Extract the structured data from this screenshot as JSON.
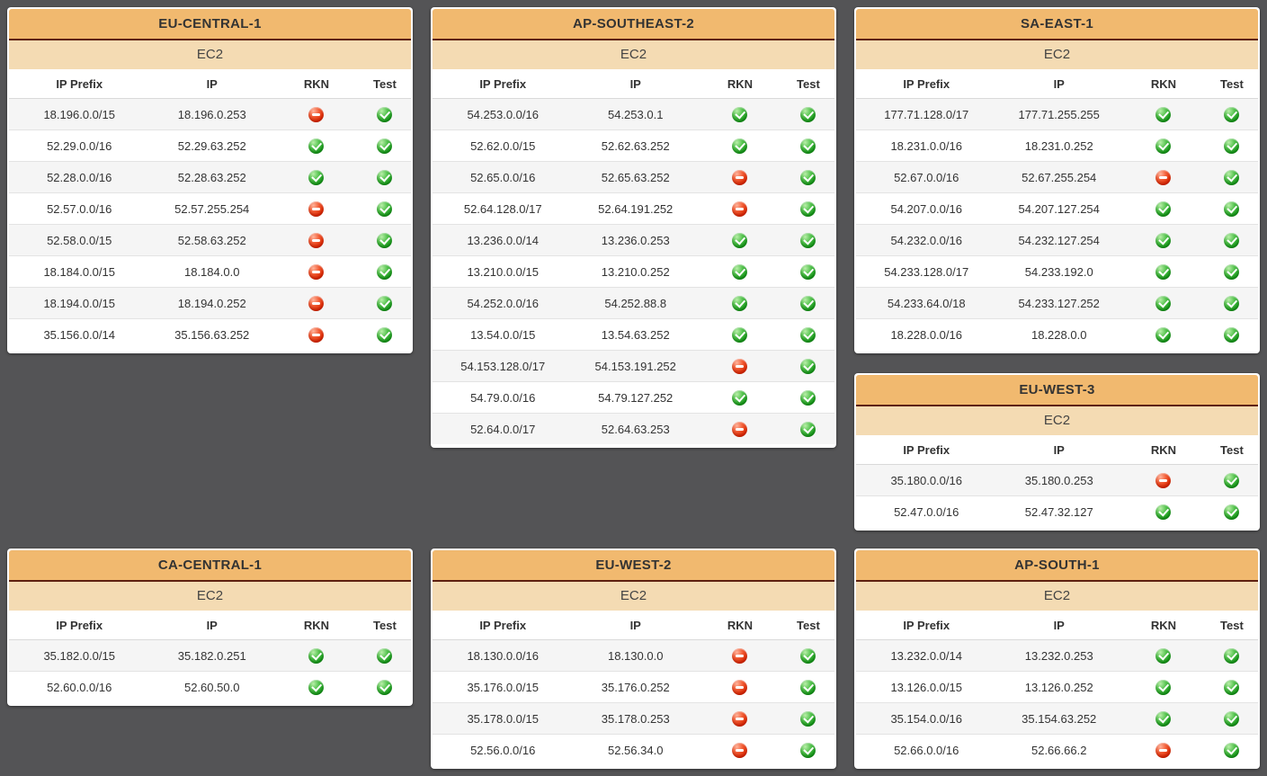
{
  "page": {
    "background_color": "#545456",
    "panel_header_color": "#f1b96f",
    "panel_subheader_color": "#f4dbb3",
    "panel_header_border_color": "#5e2010"
  },
  "service_label": "EC2",
  "table_columns": [
    "IP Prefix",
    "IP",
    "RKN",
    "Test"
  ],
  "status_icons": {
    "ok": {
      "name": "green-check-icon",
      "color": "#189a1b"
    },
    "blocked": {
      "name": "red-block-icon",
      "color": "#dc2801"
    }
  },
  "grid_rows": [
    [
      [
        "eu_central_1"
      ],
      [
        "ap_southeast_2"
      ],
      [
        "sa_east_1",
        "eu_west_3"
      ]
    ],
    [
      [
        "ca_central_1"
      ],
      [
        "eu_west_2"
      ],
      [
        "ap_south_1"
      ]
    ]
  ],
  "regions": {
    "eu_central_1": {
      "title": "EU-CENTRAL-1",
      "rows": [
        [
          "18.196.0.0/15",
          "18.196.0.253",
          "blocked",
          "ok"
        ],
        [
          "52.29.0.0/16",
          "52.29.63.252",
          "ok",
          "ok"
        ],
        [
          "52.28.0.0/16",
          "52.28.63.252",
          "ok",
          "ok"
        ],
        [
          "52.57.0.0/16",
          "52.57.255.254",
          "blocked",
          "ok"
        ],
        [
          "52.58.0.0/15",
          "52.58.63.252",
          "blocked",
          "ok"
        ],
        [
          "18.184.0.0/15",
          "18.184.0.0",
          "blocked",
          "ok"
        ],
        [
          "18.194.0.0/15",
          "18.194.0.252",
          "blocked",
          "ok"
        ],
        [
          "35.156.0.0/14",
          "35.156.63.252",
          "blocked",
          "ok"
        ]
      ]
    },
    "ap_southeast_2": {
      "title": "AP-SOUTHEAST-2",
      "rows": [
        [
          "54.253.0.0/16",
          "54.253.0.1",
          "ok",
          "ok"
        ],
        [
          "52.62.0.0/15",
          "52.62.63.252",
          "ok",
          "ok"
        ],
        [
          "52.65.0.0/16",
          "52.65.63.252",
          "blocked",
          "ok"
        ],
        [
          "52.64.128.0/17",
          "52.64.191.252",
          "blocked",
          "ok"
        ],
        [
          "13.236.0.0/14",
          "13.236.0.253",
          "ok",
          "ok"
        ],
        [
          "13.210.0.0/15",
          "13.210.0.252",
          "ok",
          "ok"
        ],
        [
          "54.252.0.0/16",
          "54.252.88.8",
          "ok",
          "ok"
        ],
        [
          "13.54.0.0/15",
          "13.54.63.252",
          "ok",
          "ok"
        ],
        [
          "54.153.128.0/17",
          "54.153.191.252",
          "blocked",
          "ok"
        ],
        [
          "54.79.0.0/16",
          "54.79.127.252",
          "ok",
          "ok"
        ],
        [
          "52.64.0.0/17",
          "52.64.63.253",
          "blocked",
          "ok"
        ]
      ]
    },
    "sa_east_1": {
      "title": "SA-EAST-1",
      "rows": [
        [
          "177.71.128.0/17",
          "177.71.255.255",
          "ok",
          "ok"
        ],
        [
          "18.231.0.0/16",
          "18.231.0.252",
          "ok",
          "ok"
        ],
        [
          "52.67.0.0/16",
          "52.67.255.254",
          "blocked",
          "ok"
        ],
        [
          "54.207.0.0/16",
          "54.207.127.254",
          "ok",
          "ok"
        ],
        [
          "54.232.0.0/16",
          "54.232.127.254",
          "ok",
          "ok"
        ],
        [
          "54.233.128.0/17",
          "54.233.192.0",
          "ok",
          "ok"
        ],
        [
          "54.233.64.0/18",
          "54.233.127.252",
          "ok",
          "ok"
        ],
        [
          "18.228.0.0/16",
          "18.228.0.0",
          "ok",
          "ok"
        ]
      ]
    },
    "eu_west_3": {
      "title": "EU-WEST-3",
      "rows": [
        [
          "35.180.0.0/16",
          "35.180.0.253",
          "blocked",
          "ok"
        ],
        [
          "52.47.0.0/16",
          "52.47.32.127",
          "ok",
          "ok"
        ]
      ]
    },
    "ca_central_1": {
      "title": "CA-CENTRAL-1",
      "rows": [
        [
          "35.182.0.0/15",
          "35.182.0.251",
          "ok",
          "ok"
        ],
        [
          "52.60.0.0/16",
          "52.60.50.0",
          "ok",
          "ok"
        ]
      ]
    },
    "eu_west_2": {
      "title": "EU-WEST-2",
      "rows": [
        [
          "18.130.0.0/16",
          "18.130.0.0",
          "blocked",
          "ok"
        ],
        [
          "35.176.0.0/15",
          "35.176.0.252",
          "blocked",
          "ok"
        ],
        [
          "35.178.0.0/15",
          "35.178.0.253",
          "blocked",
          "ok"
        ],
        [
          "52.56.0.0/16",
          "52.56.34.0",
          "blocked",
          "ok"
        ]
      ]
    },
    "ap_south_1": {
      "title": "AP-SOUTH-1",
      "rows": [
        [
          "13.232.0.0/14",
          "13.232.0.253",
          "ok",
          "ok"
        ],
        [
          "13.126.0.0/15",
          "13.126.0.252",
          "ok",
          "ok"
        ],
        [
          "35.154.0.0/16",
          "35.154.63.252",
          "ok",
          "ok"
        ],
        [
          "52.66.0.0/16",
          "52.66.66.2",
          "blocked",
          "ok"
        ]
      ]
    }
  }
}
